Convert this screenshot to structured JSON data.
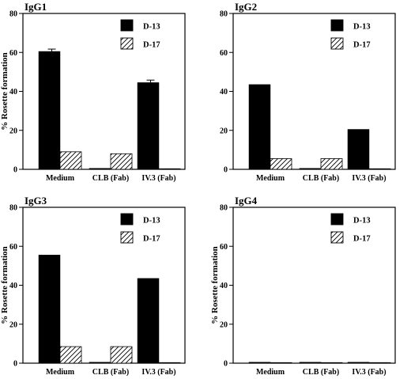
{
  "chart_data": [
    {
      "type": "bar",
      "title": "IgG1",
      "ylabel": "% Rosette formation",
      "xlabel": "",
      "ylim": [
        0,
        80
      ],
      "yticks": [
        0,
        20,
        40,
        60,
        80
      ],
      "categories": [
        "Medium",
        "CLB (Fab)",
        "IV.3 (Fab)"
      ],
      "legend_position": "top-right",
      "series": [
        {
          "name": "D-13",
          "pattern": "solid",
          "values": [
            60.5,
            0.5,
            44.5
          ],
          "errors": [
            1.2,
            0,
            1.3
          ]
        },
        {
          "name": "D-17",
          "pattern": "hatched",
          "values": [
            9,
            8,
            0.3
          ],
          "errors": [
            0,
            0,
            0
          ]
        }
      ]
    },
    {
      "type": "bar",
      "title": "IgG2",
      "ylabel": "",
      "xlabel": "",
      "ylim": [
        0,
        80
      ],
      "yticks": [
        0,
        20,
        40,
        60,
        80
      ],
      "categories": [
        "Medium",
        "CLB (Fab)",
        "IV.3 (Fab)"
      ],
      "legend_position": "top-right",
      "series": [
        {
          "name": "D-13",
          "pattern": "solid",
          "values": [
            43.5,
            0.5,
            20.5
          ],
          "errors": [
            0,
            0,
            0
          ]
        },
        {
          "name": "D-17",
          "pattern": "hatched",
          "values": [
            5.5,
            5.5,
            0.3
          ],
          "errors": [
            0,
            0,
            0
          ]
        }
      ]
    },
    {
      "type": "bar",
      "title": "IgG3",
      "ylabel": "% Rosette formation",
      "xlabel": "",
      "ylim": [
        0,
        80
      ],
      "yticks": [
        0,
        20,
        40,
        60,
        80
      ],
      "categories": [
        "Medium",
        "CLB (Fab)",
        "IV.3 (Fab)"
      ],
      "legend_position": "top-right",
      "series": [
        {
          "name": "D-13",
          "pattern": "solid",
          "values": [
            55.5,
            0.5,
            43.5
          ],
          "errors": [
            0,
            0,
            0
          ]
        },
        {
          "name": "D-17",
          "pattern": "hatched",
          "values": [
            8.5,
            8.5,
            0.3
          ],
          "errors": [
            0,
            0,
            0
          ]
        }
      ]
    },
    {
      "type": "bar",
      "title": "IgG4",
      "ylabel": "% Rosette formation",
      "xlabel": "",
      "ylim": [
        0,
        80
      ],
      "yticks": [
        0,
        20,
        40,
        60,
        80
      ],
      "categories": [
        "Medium",
        "CLB (Fab)",
        "IV.3 (Fab)"
      ],
      "legend_position": "top-right",
      "series": [
        {
          "name": "D-13",
          "pattern": "solid",
          "values": [
            0.5,
            0.5,
            0.5
          ],
          "errors": [
            0,
            0,
            0
          ]
        },
        {
          "name": "D-17",
          "pattern": "hatched",
          "values": [
            0.3,
            0.3,
            0.3
          ],
          "errors": [
            0,
            0,
            0
          ]
        }
      ]
    }
  ]
}
